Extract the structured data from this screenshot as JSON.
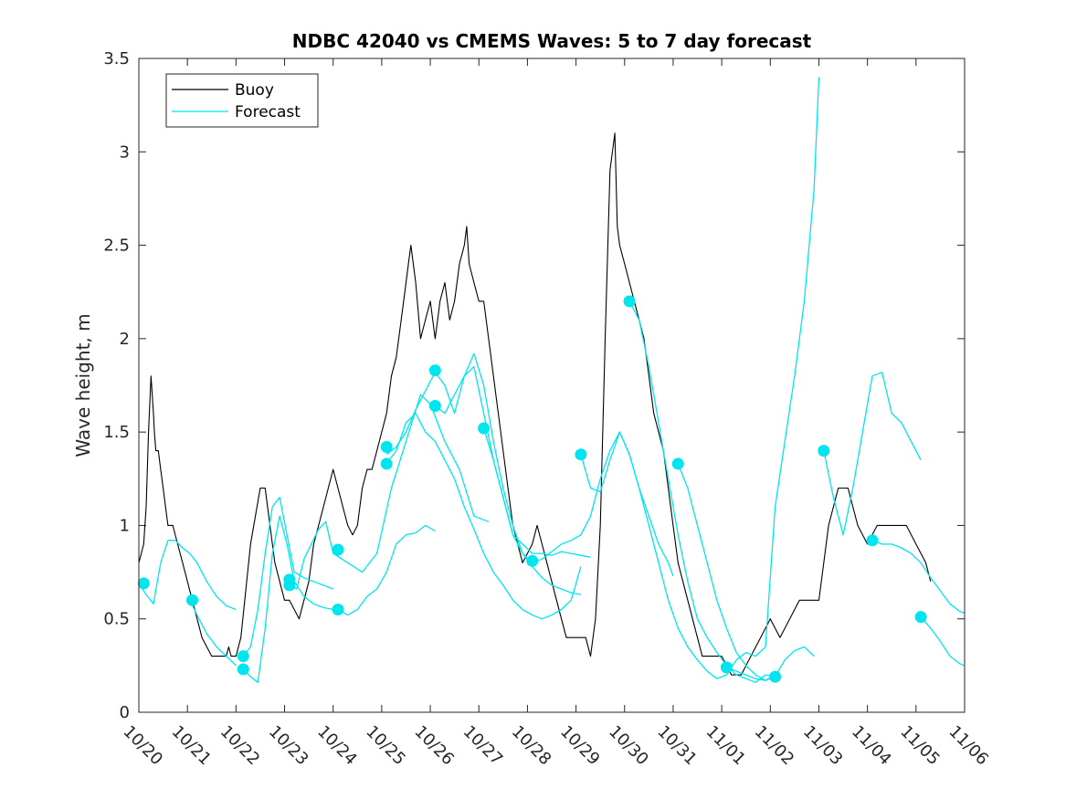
{
  "chart_data": {
    "type": "line",
    "title": "NDBC 42040 vs CMEMS Waves: 5 to 7 day forecast",
    "xlabel": "",
    "ylabel": "Wave height, m",
    "xlim": [
      0,
      17
    ],
    "ylim": [
      0,
      3.5
    ],
    "x_tick_values": [
      0,
      1,
      2,
      3,
      4,
      5,
      6,
      7,
      8,
      9,
      10,
      11,
      12,
      13,
      14,
      15,
      16,
      17
    ],
    "x_tick_labels": [
      "10/20",
      "10/21",
      "10/22",
      "10/23",
      "10/24",
      "10/25",
      "10/26",
      "10/27",
      "10/28",
      "10/29",
      "10/30",
      "10/31",
      "11/01",
      "11/02",
      "11/03",
      "11/04",
      "11/05",
      "11/06"
    ],
    "y_ticks": [
      0,
      0.5,
      1,
      1.5,
      2,
      2.5,
      3,
      3.5
    ],
    "y_tick_labels": [
      "0",
      "0.5",
      "1",
      "1.5",
      "2",
      "2.5",
      "3",
      "3.5"
    ],
    "legend": {
      "position": "top-left",
      "entries": [
        {
          "label": "Buoy",
          "color": "#000000"
        },
        {
          "label": "Forecast",
          "color": "#00e5ee"
        }
      ]
    },
    "series": [
      {
        "name": "Buoy",
        "color": "#000000",
        "x": [
          0,
          0.1,
          0.15,
          0.2,
          0.25,
          0.3,
          0.32,
          0.35,
          0.4,
          0.45,
          0.5,
          0.55,
          0.6,
          0.7,
          0.8,
          0.9,
          1.0,
          1.1,
          1.2,
          1.3,
          1.4,
          1.5,
          1.6,
          1.7,
          1.8,
          1.85,
          1.9,
          2.0,
          2.1,
          2.3,
          2.5,
          2.6,
          2.65,
          2.7,
          2.75,
          2.8,
          2.9,
          3.0,
          3.1,
          3.2,
          3.3,
          3.4,
          3.5,
          3.6,
          3.7,
          3.8,
          3.9,
          4.0,
          4.1,
          4.2,
          4.3,
          4.4,
          4.5,
          4.6,
          4.7,
          4.8,
          4.9,
          5.0,
          5.1,
          5.2,
          5.3,
          5.4,
          5.5,
          5.55,
          5.6,
          5.7,
          5.8,
          5.9,
          6.0,
          6.1,
          6.2,
          6.3,
          6.4,
          6.5,
          6.6,
          6.7,
          6.75,
          6.8,
          6.9,
          7.0,
          7.1,
          7.2,
          7.3,
          7.4,
          7.5,
          7.6,
          7.7,
          7.8,
          7.9,
          8.0,
          8.1,
          8.2,
          8.3,
          8.4,
          8.5,
          8.6,
          8.7,
          8.8,
          9.0,
          9.2,
          9.3,
          9.4,
          9.5,
          9.6,
          9.7,
          9.8,
          9.85,
          9.9,
          10.0,
          10.1,
          10.2,
          10.3,
          10.4,
          10.5,
          10.6,
          10.7,
          10.8,
          10.9,
          11.0,
          11.1,
          11.2,
          11.3,
          11.4,
          11.5,
          11.6,
          11.7,
          11.8,
          11.9,
          12.0,
          12.2,
          12.4,
          12.6,
          12.8,
          13.0,
          13.2,
          13.4,
          13.6,
          13.8,
          14.0,
          14.2,
          14.4,
          14.6,
          14.8,
          15.0,
          15.2,
          15.4,
          15.6,
          15.8,
          16.0,
          16.2,
          16.3
        ],
        "values": [
          0.8,
          0.9,
          1.1,
          1.5,
          1.8,
          1.6,
          1.5,
          1.4,
          1.4,
          1.3,
          1.2,
          1.1,
          1.0,
          1.0,
          0.9,
          0.8,
          0.7,
          0.6,
          0.5,
          0.4,
          0.35,
          0.3,
          0.3,
          0.3,
          0.3,
          0.35,
          0.3,
          0.3,
          0.4,
          0.9,
          1.2,
          1.2,
          1.1,
          1.0,
          0.9,
          0.8,
          0.7,
          0.6,
          0.6,
          0.55,
          0.5,
          0.6,
          0.7,
          0.9,
          1.0,
          1.1,
          1.2,
          1.3,
          1.2,
          1.1,
          1.0,
          0.95,
          1.0,
          1.2,
          1.3,
          1.3,
          1.4,
          1.5,
          1.6,
          1.8,
          1.9,
          2.1,
          2.3,
          2.4,
          2.5,
          2.3,
          2.0,
          2.1,
          2.2,
          2.0,
          2.2,
          2.3,
          2.1,
          2.2,
          2.4,
          2.5,
          2.6,
          2.4,
          2.3,
          2.2,
          2.2,
          2.0,
          1.8,
          1.6,
          1.4,
          1.2,
          1.0,
          0.9,
          0.8,
          0.85,
          0.9,
          1.0,
          0.9,
          0.8,
          0.7,
          0.6,
          0.5,
          0.4,
          0.4,
          0.4,
          0.3,
          0.5,
          1.0,
          2.0,
          2.9,
          3.1,
          2.6,
          2.5,
          2.4,
          2.3,
          2.2,
          2.1,
          2.0,
          1.8,
          1.6,
          1.5,
          1.4,
          1.2,
          1.0,
          0.8,
          0.7,
          0.6,
          0.5,
          0.4,
          0.3,
          0.3,
          0.3,
          0.3,
          0.3,
          0.2,
          0.2,
          0.3,
          0.4,
          0.5,
          0.4,
          0.5,
          0.6,
          0.6,
          0.6,
          1.0,
          1.2,
          1.2,
          1.0,
          0.9,
          1.0,
          1.0,
          1.0,
          1.0,
          0.9,
          0.8,
          0.7
        ]
      },
      {
        "name": "Forecast seg 1",
        "color": "#00e5ee",
        "x": [
          0,
          0.15,
          0.3,
          0.45,
          0.6,
          0.75,
          0.9,
          1.05,
          1.2,
          1.4,
          1.6,
          1.8,
          2.0
        ],
        "values": [
          0.69,
          0.63,
          0.58,
          0.8,
          0.92,
          0.92,
          0.88,
          0.85,
          0.8,
          0.7,
          0.62,
          0.57,
          0.55
        ]
      },
      {
        "name": "Forecast seg 2",
        "color": "#00e5ee",
        "x": [
          1.05,
          1.2,
          1.4,
          1.6,
          1.8,
          2.0
        ],
        "values": [
          0.6,
          0.52,
          0.42,
          0.35,
          0.3,
          0.25
        ]
      },
      {
        "name": "Forecast seg 3",
        "color": "#00e5ee",
        "x": [
          2.15,
          2.3,
          2.45,
          2.6,
          2.75,
          2.9,
          3.05,
          3.2,
          3.4,
          3.6,
          3.8,
          4.0
        ],
        "values": [
          0.23,
          0.19,
          0.16,
          0.45,
          0.85,
          1.05,
          0.9,
          0.7,
          0.62,
          0.58,
          0.56,
          0.55
        ]
      },
      {
        "name": "Forecast seg 4",
        "color": "#00e5ee",
        "x": [
          2.15,
          2.3,
          2.45,
          2.6,
          2.75,
          2.9,
          3.05,
          3.2,
          3.4,
          3.6,
          3.8,
          4.0
        ],
        "values": [
          0.3,
          0.35,
          0.55,
          0.85,
          1.1,
          1.15,
          0.95,
          0.75,
          0.72,
          0.7,
          0.68,
          0.66
        ]
      },
      {
        "name": "Forecast seg 5",
        "color": "#00e5ee",
        "x": [
          3.1,
          3.25,
          3.4,
          3.55,
          3.7,
          3.85,
          4.0,
          4.3,
          4.6,
          4.9,
          5.2,
          5.5,
          5.8,
          6.0,
          6.3,
          6.6,
          6.9,
          7.2
        ],
        "values": [
          0.68,
          0.66,
          0.82,
          0.9,
          0.98,
          1.02,
          0.85,
          0.8,
          0.75,
          0.85,
          1.2,
          1.45,
          1.7,
          1.65,
          1.45,
          1.3,
          1.05,
          1.02
        ]
      },
      {
        "name": "Forecast seg 6",
        "color": "#00e5ee",
        "x": [
          4.1,
          4.3,
          4.5,
          4.7,
          4.9,
          5.1,
          5.3,
          5.5,
          5.7,
          5.9,
          6.1
        ],
        "values": [
          0.55,
          0.52,
          0.55,
          0.62,
          0.66,
          0.75,
          0.9,
          0.95,
          0.96,
          1.0,
          0.97
        ]
      },
      {
        "name": "Forecast seg 7",
        "color": "#00e5ee",
        "x": [
          5.1,
          5.3,
          5.5,
          5.7,
          5.9,
          6.1,
          6.3,
          6.5,
          6.7,
          6.9,
          7.1,
          7.3,
          7.5,
          7.7,
          7.9,
          8.1,
          8.3,
          8.5,
          8.7,
          8.9,
          9.1,
          9.3,
          9.5,
          9.7,
          9.9,
          10.1,
          10.3,
          10.5,
          10.7,
          10.9,
          11.1,
          11.3,
          11.5,
          11.7,
          11.9,
          12.1,
          12.3,
          12.5,
          12.7,
          12.9,
          13.1,
          13.3,
          13.5,
          13.7,
          13.9,
          14.0
        ],
        "values": [
          1.38,
          1.42,
          1.5,
          1.62,
          1.72,
          1.82,
          1.75,
          1.6,
          1.8,
          1.92,
          1.75,
          1.45,
          1.2,
          1.0,
          0.85,
          0.8,
          0.82,
          0.86,
          0.9,
          0.92,
          0.95,
          1.05,
          1.25,
          1.4,
          1.5,
          1.38,
          1.2,
          1.0,
          0.8,
          0.6,
          0.45,
          0.35,
          0.28,
          0.22,
          0.18,
          0.2,
          0.28,
          0.32,
          0.3,
          0.35,
          1.1,
          1.45,
          1.8,
          2.2,
          2.8,
          3.4
        ]
      },
      {
        "name": "Forecast seg 8",
        "color": "#00e5ee",
        "x": [
          5.1,
          5.3,
          5.5,
          5.7,
          5.9,
          6.1,
          6.3,
          6.5,
          6.7,
          6.9,
          7.1,
          7.3,
          7.5,
          7.7,
          7.9,
          8.1,
          8.3,
          8.5,
          8.7,
          8.9,
          9.1
        ],
        "values": [
          1.33,
          1.4,
          1.55,
          1.6,
          1.5,
          1.45,
          1.35,
          1.25,
          1.1,
          0.98,
          0.85,
          0.75,
          0.68,
          0.6,
          0.55,
          0.52,
          0.5,
          0.52,
          0.55,
          0.6,
          0.78
        ]
      },
      {
        "name": "Forecast seg 9",
        "color": "#00e5ee",
        "x": [
          6.1,
          6.3,
          6.5,
          6.7,
          6.9,
          7.1,
          7.3,
          7.5,
          7.7,
          7.9,
          8.1,
          8.3,
          8.5,
          8.7,
          8.9,
          9.1,
          9.3
        ],
        "values": [
          1.64,
          1.6,
          1.7,
          1.8,
          1.85,
          1.6,
          1.35,
          1.15,
          0.95,
          0.9,
          0.85,
          0.85,
          0.84,
          0.86,
          0.85,
          0.84,
          0.83
        ]
      },
      {
        "name": "Forecast seg 10",
        "color": "#00e5ee",
        "x": [
          7.1,
          7.3,
          7.5,
          7.7,
          7.9,
          8.1,
          8.3,
          8.5,
          8.7,
          8.9,
          9.1
        ],
        "values": [
          1.52,
          1.35,
          1.15,
          0.95,
          0.85,
          0.78,
          0.72,
          0.68,
          0.66,
          0.64,
          0.63
        ]
      },
      {
        "name": "Forecast seg 11",
        "color": "#00e5ee",
        "x": [
          9.1,
          9.3,
          9.5,
          9.7,
          9.9,
          10.1,
          10.3,
          10.5,
          10.7,
          10.9,
          11.0
        ],
        "values": [
          1.38,
          1.2,
          1.18,
          1.35,
          1.5,
          1.38,
          1.2,
          1.05,
          0.9,
          0.8,
          0.73
        ]
      },
      {
        "name": "Forecast seg 12",
        "color": "#00e5ee",
        "x": [
          10.1,
          10.3,
          10.5,
          10.7,
          10.9,
          11.1,
          11.3,
          11.5,
          11.7,
          11.9,
          12.1,
          12.3,
          12.5,
          12.7,
          12.9,
          13.1
        ],
        "values": [
          2.2,
          2.1,
          1.85,
          1.55,
          1.25,
          0.95,
          0.7,
          0.5,
          0.4,
          0.32,
          0.25,
          0.2,
          0.18,
          0.16,
          0.2,
          0.19
        ]
      },
      {
        "name": "Forecast seg 13",
        "color": "#00e5ee",
        "x": [
          11.1,
          11.3,
          11.5,
          11.7,
          11.9,
          12.1,
          12.3,
          12.5,
          12.7,
          12.9,
          13.1
        ],
        "values": [
          1.33,
          1.2,
          1.0,
          0.8,
          0.6,
          0.45,
          0.32,
          0.25,
          0.2,
          0.17,
          0.2
        ]
      },
      {
        "name": "Forecast seg 14",
        "color": "#00e5ee",
        "x": [
          12.1,
          12.3,
          12.5,
          12.7,
          12.9,
          13.1,
          13.3,
          13.5,
          13.7,
          13.9
        ],
        "values": [
          0.24,
          0.22,
          0.2,
          0.18,
          0.17,
          0.19,
          0.28,
          0.33,
          0.35,
          0.3
        ]
      },
      {
        "name": "Forecast seg 15",
        "color": "#00e5ee",
        "x": [
          14.1,
          14.3,
          14.5,
          14.7,
          14.9,
          15.1,
          15.3,
          15.5,
          15.7,
          15.9,
          16.1
        ],
        "values": [
          1.4,
          1.15,
          0.95,
          1.2,
          1.5,
          1.8,
          1.82,
          1.6,
          1.55,
          1.45,
          1.35
        ]
      },
      {
        "name": "Forecast seg 16",
        "color": "#00e5ee",
        "x": [
          15.1,
          15.3,
          15.5,
          15.7,
          15.9,
          16.1,
          16.3,
          16.5,
          16.7,
          16.9,
          17.0
        ],
        "values": [
          0.92,
          0.9,
          0.9,
          0.88,
          0.85,
          0.8,
          0.72,
          0.65,
          0.58,
          0.54,
          0.53
        ]
      },
      {
        "name": "Forecast seg 17",
        "color": "#00e5ee",
        "x": [
          16.1,
          16.3,
          16.5,
          16.7,
          16.9,
          17.0
        ],
        "values": [
          0.51,
          0.45,
          0.38,
          0.3,
          0.26,
          0.25
        ]
      }
    ],
    "markers": {
      "name": "Forecast start",
      "color": "#00e5ee",
      "x": [
        0.1,
        1.1,
        2.15,
        2.15,
        3.1,
        3.1,
        4.1,
        4.1,
        5.1,
        5.1,
        6.1,
        6.1,
        7.1,
        8.1,
        9.1,
        10.1,
        11.1,
        12.1,
        13.1,
        14.1,
        15.1,
        16.1
      ],
      "values": [
        0.69,
        0.6,
        0.3,
        0.23,
        0.71,
        0.68,
        0.87,
        0.55,
        1.42,
        1.33,
        1.83,
        1.64,
        1.52,
        0.81,
        1.38,
        2.2,
        1.33,
        0.24,
        0.19,
        1.4,
        0.92,
        0.51
      ]
    }
  }
}
